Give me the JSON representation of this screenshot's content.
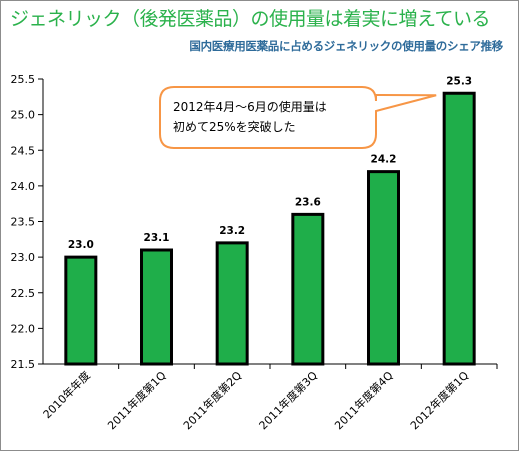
{
  "chart_data": {
    "type": "bar",
    "title": "ジェネリック（後発医薬品）の使用量は着実に増えている",
    "subtitle": "国内医療用医薬品に占めるジェネリックの使用量のシェア推移",
    "categories": [
      "2010年年度",
      "2011年度第1Q",
      "2011年度第2Q",
      "2011年度第3Q",
      "2011年度第4Q",
      "2012年度第1Q"
    ],
    "values": [
      23.0,
      23.1,
      23.2,
      23.6,
      24.2,
      25.3
    ],
    "value_labels": [
      "23.0",
      "23.1",
      "23.2",
      "23.6",
      "24.2",
      "25.3"
    ],
    "ylim": [
      21.5,
      25.5
    ],
    "yticks": [
      "21.5",
      "22.0",
      "22.5",
      "23.0",
      "23.5",
      "24.0",
      "24.5",
      "25.0",
      "25.5"
    ],
    "xlabel": "",
    "ylabel": "",
    "grid": false,
    "legend": "none",
    "annotation": {
      "lines": [
        "2012年4月～6月の使用量は",
        "初めて25%を突破した"
      ],
      "points_to": "2012年度第1Q"
    },
    "colors": {
      "bar_fill": "#1fae4a",
      "bar_edge": "#000000",
      "title": "#2bb24c",
      "subtitle": "#2e6b9a",
      "callout_border": "#f79646",
      "axis": "#000000"
    }
  }
}
